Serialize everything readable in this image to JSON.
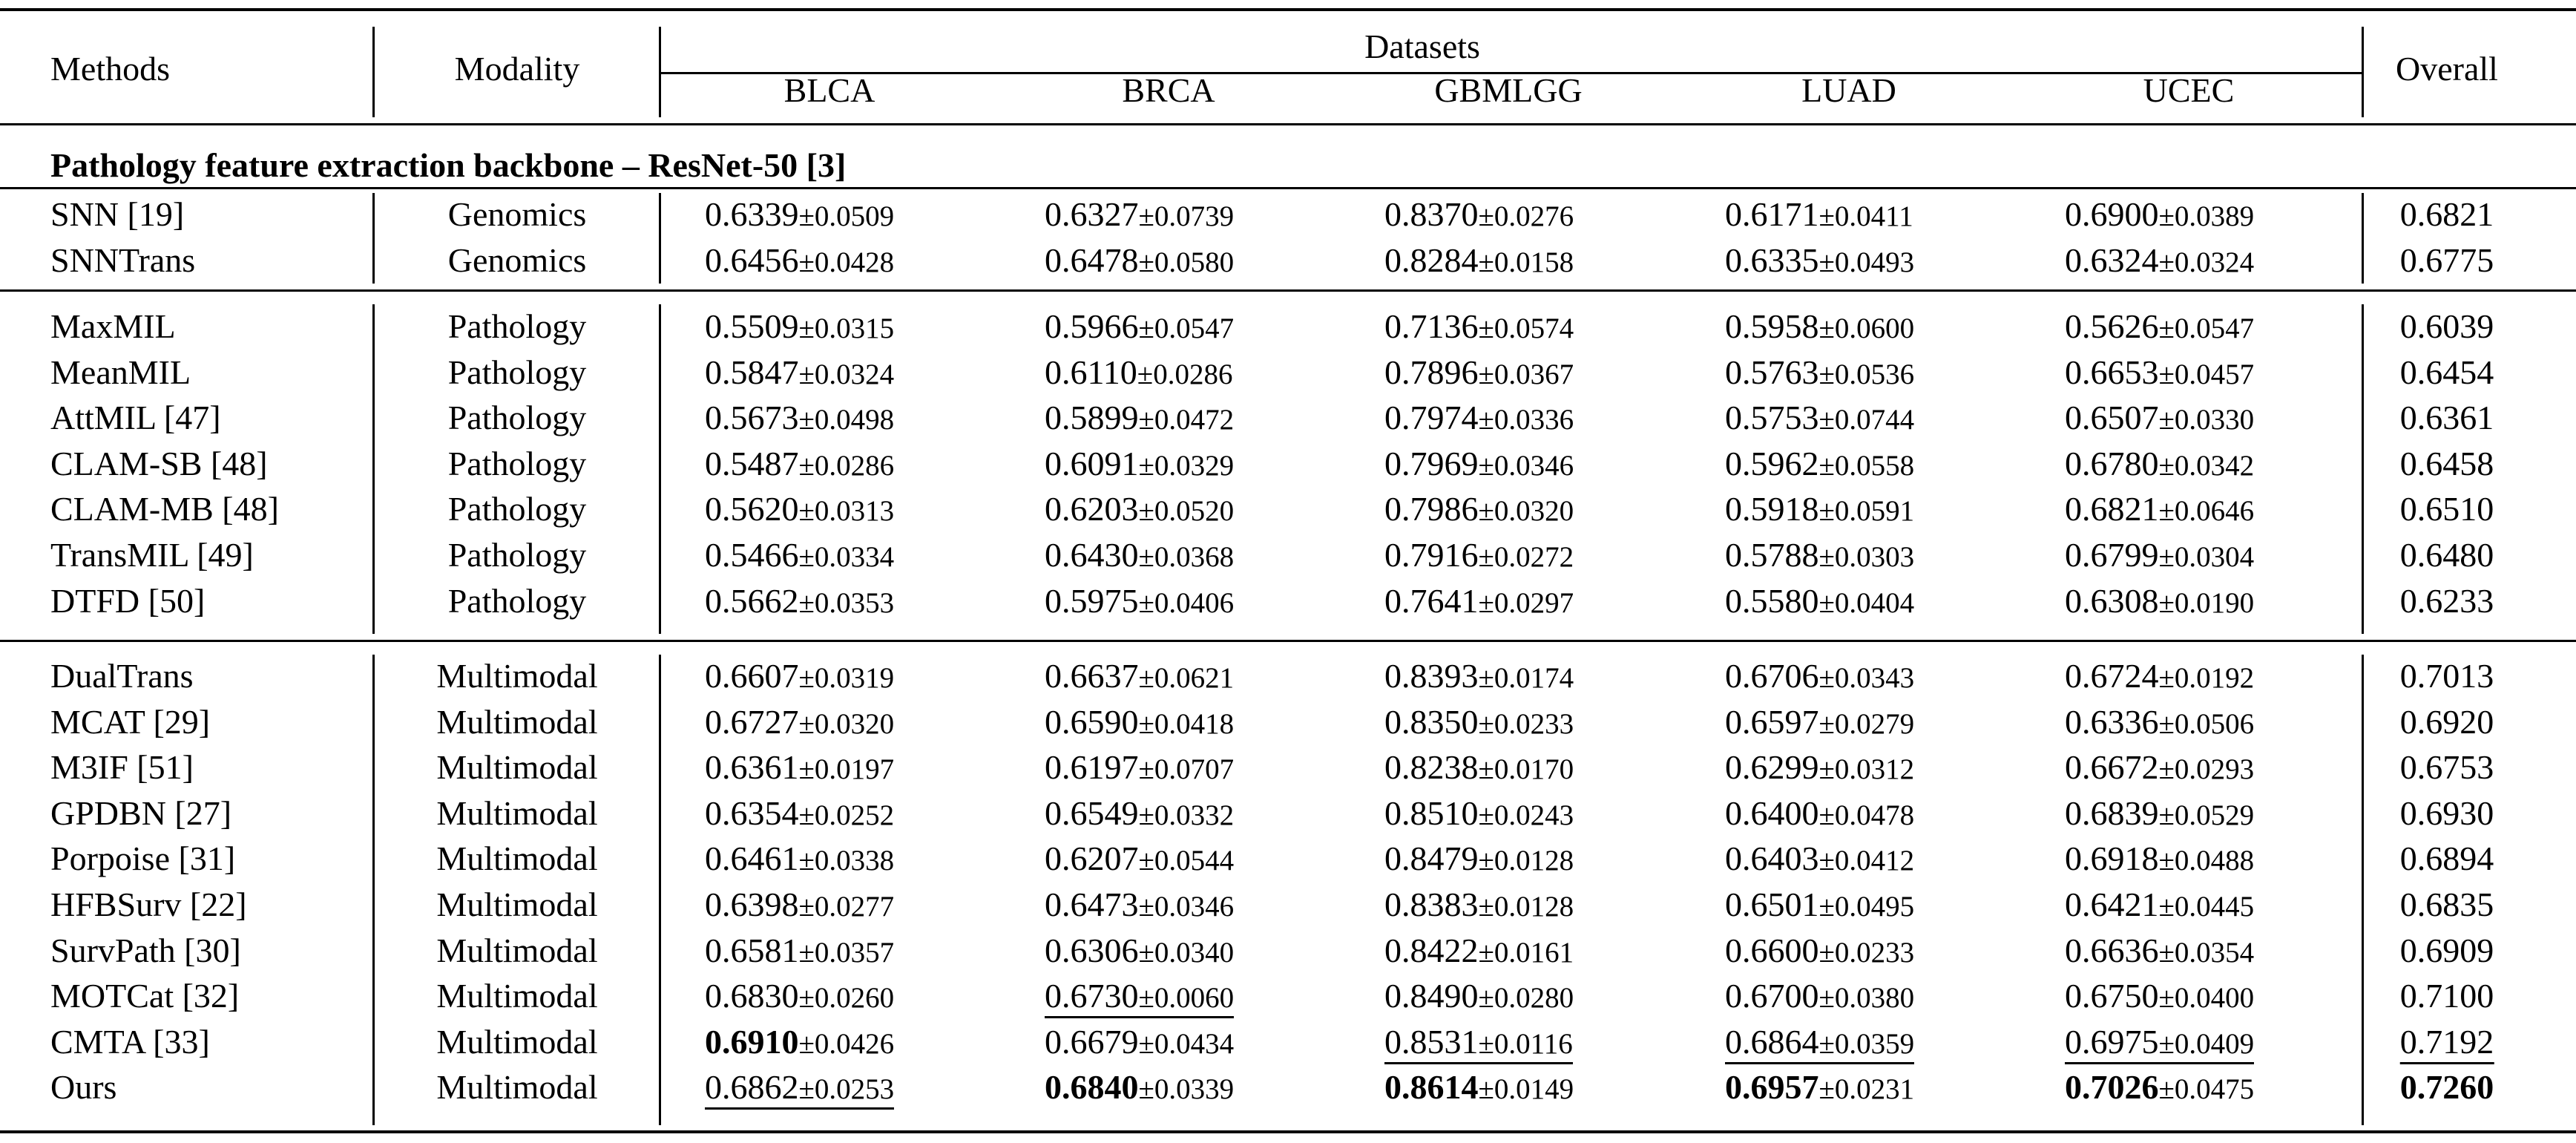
{
  "table": {
    "headers": {
      "methods": "Methods",
      "modality": "Modality",
      "datasets": "Datasets",
      "overall": "Overall",
      "columns": [
        "BLCA",
        "BRCA",
        "GBMLGG",
        "LUAD",
        "UCEC"
      ]
    },
    "section_title": "Pathology feature extraction backbone – ResNet-50 [3]",
    "groups": [
      {
        "name": "genomics",
        "rows": [
          {
            "method": "SNN [19]",
            "modality": "Genomics",
            "cells": [
              [
                "0.6339",
                "±0.0509"
              ],
              [
                "0.6327",
                "±0.0739"
              ],
              [
                "0.8370",
                "±0.0276"
              ],
              [
                "0.6171",
                "±0.0411"
              ],
              [
                "0.6900",
                "±0.0389"
              ]
            ],
            "overall": "0.6821"
          },
          {
            "method": "SNNTrans",
            "modality": "Genomics",
            "cells": [
              [
                "0.6456",
                "±0.0428"
              ],
              [
                "0.6478",
                "±0.0580"
              ],
              [
                "0.8284",
                "±0.0158"
              ],
              [
                "0.6335",
                "±0.0493"
              ],
              [
                "0.6324",
                "±0.0324"
              ]
            ],
            "overall": "0.6775"
          }
        ]
      },
      {
        "name": "pathology",
        "rows": [
          {
            "method": "MaxMIL",
            "modality": "Pathology",
            "cells": [
              [
                "0.5509",
                "±0.0315"
              ],
              [
                "0.5966",
                "±0.0547"
              ],
              [
                "0.7136",
                "±0.0574"
              ],
              [
                "0.5958",
                "±0.0600"
              ],
              [
                "0.5626",
                "±0.0547"
              ]
            ],
            "overall": "0.6039"
          },
          {
            "method": "MeanMIL",
            "modality": "Pathology",
            "cells": [
              [
                "0.5847",
                "±0.0324"
              ],
              [
                "0.6110",
                "±0.0286"
              ],
              [
                "0.7896",
                "±0.0367"
              ],
              [
                "0.5763",
                "±0.0536"
              ],
              [
                "0.6653",
                "±0.0457"
              ]
            ],
            "overall": "0.6454"
          },
          {
            "method": "AttMIL [47]",
            "modality": "Pathology",
            "cells": [
              [
                "0.5673",
                "±0.0498"
              ],
              [
                "0.5899",
                "±0.0472"
              ],
              [
                "0.7974",
                "±0.0336"
              ],
              [
                "0.5753",
                "±0.0744"
              ],
              [
                "0.6507",
                "±0.0330"
              ]
            ],
            "overall": "0.6361"
          },
          {
            "method": "CLAM-SB [48]",
            "modality": "Pathology",
            "cells": [
              [
                "0.5487",
                "±0.0286"
              ],
              [
                "0.6091",
                "±0.0329"
              ],
              [
                "0.7969",
                "±0.0346"
              ],
              [
                "0.5962",
                "±0.0558"
              ],
              [
                "0.6780",
                "±0.0342"
              ]
            ],
            "overall": "0.6458"
          },
          {
            "method": "CLAM-MB [48]",
            "modality": "Pathology",
            "cells": [
              [
                "0.5620",
                "±0.0313"
              ],
              [
                "0.6203",
                "±0.0520"
              ],
              [
                "0.7986",
                "±0.0320"
              ],
              [
                "0.5918",
                "±0.0591"
              ],
              [
                "0.6821",
                "±0.0646"
              ]
            ],
            "overall": "0.6510"
          },
          {
            "method": "TransMIL [49]",
            "modality": "Pathology",
            "cells": [
              [
                "0.5466",
                "±0.0334"
              ],
              [
                "0.6430",
                "±0.0368"
              ],
              [
                "0.7916",
                "±0.0272"
              ],
              [
                "0.5788",
                "±0.0303"
              ],
              [
                "0.6799",
                "±0.0304"
              ]
            ],
            "overall": "0.6480"
          },
          {
            "method": "DTFD [50]",
            "modality": "Pathology",
            "cells": [
              [
                "0.5662",
                "±0.0353"
              ],
              [
                "0.5975",
                "±0.0406"
              ],
              [
                "0.7641",
                "±0.0297"
              ],
              [
                "0.5580",
                "±0.0404"
              ],
              [
                "0.6308",
                "±0.0190"
              ]
            ],
            "overall": "0.6233"
          }
        ]
      },
      {
        "name": "multimodal",
        "rows": [
          {
            "method": "DualTrans",
            "modality": "Multimodal",
            "cells": [
              [
                "0.6607",
                "±0.0319"
              ],
              [
                "0.6637",
                "±0.0621"
              ],
              [
                "0.8393",
                "±0.0174"
              ],
              [
                "0.6706",
                "±0.0343"
              ],
              [
                "0.6724",
                "±0.0192"
              ]
            ],
            "overall": "0.7013"
          },
          {
            "method": "MCAT [29]",
            "modality": "Multimodal",
            "cells": [
              [
                "0.6727",
                "±0.0320"
              ],
              [
                "0.6590",
                "±0.0418"
              ],
              [
                "0.8350",
                "±0.0233"
              ],
              [
                "0.6597",
                "±0.0279"
              ],
              [
                "0.6336",
                "±0.0506"
              ]
            ],
            "overall": "0.6920"
          },
          {
            "method": "M3IF [51]",
            "modality": "Multimodal",
            "cells": [
              [
                "0.6361",
                "±0.0197"
              ],
              [
                "0.6197",
                "±0.0707"
              ],
              [
                "0.8238",
                "±0.0170"
              ],
              [
                "0.6299",
                "±0.0312"
              ],
              [
                "0.6672",
                "±0.0293"
              ]
            ],
            "overall": "0.6753"
          },
          {
            "method": "GPDBN [27]",
            "modality": "Multimodal",
            "cells": [
              [
                "0.6354",
                "±0.0252"
              ],
              [
                "0.6549",
                "±0.0332"
              ],
              [
                "0.8510",
                "±0.0243"
              ],
              [
                "0.6400",
                "±0.0478"
              ],
              [
                "0.6839",
                "±0.0529"
              ]
            ],
            "overall": "0.6930"
          },
          {
            "method": "Porpoise [31]",
            "modality": "Multimodal",
            "cells": [
              [
                "0.6461",
                "±0.0338"
              ],
              [
                "0.6207",
                "±0.0544"
              ],
              [
                "0.8479",
                "±0.0128"
              ],
              [
                "0.6403",
                "±0.0412"
              ],
              [
                "0.6918",
                "±0.0488"
              ]
            ],
            "overall": "0.6894"
          },
          {
            "method": "HFBSurv [22]",
            "modality": "Multimodal",
            "cells": [
              [
                "0.6398",
                "±0.0277"
              ],
              [
                "0.6473",
                "±0.0346"
              ],
              [
                "0.8383",
                "±0.0128"
              ],
              [
                "0.6501",
                "±0.0495"
              ],
              [
                "0.6421",
                "±0.0445"
              ]
            ],
            "overall": "0.6835"
          },
          {
            "method": "SurvPath [30]",
            "modality": "Multimodal",
            "cells": [
              [
                "0.6581",
                "±0.0357"
              ],
              [
                "0.6306",
                "±0.0340"
              ],
              [
                "0.8422",
                "±0.0161"
              ],
              [
                "0.6600",
                "±0.0233"
              ],
              [
                "0.6636",
                "±0.0354"
              ]
            ],
            "overall": "0.6909"
          },
          {
            "method": "MOTCat [32]",
            "modality": "Multimodal",
            "cells": [
              [
                "0.6830",
                "±0.0260"
              ],
              [
                "0.6730",
                "±0.0060",
                "u"
              ],
              [
                "0.8490",
                "±0.0280"
              ],
              [
                "0.6700",
                "±0.0380"
              ],
              [
                "0.6750",
                "±0.0400"
              ]
            ],
            "overall": "0.7100"
          },
          {
            "method": "CMTA [33]",
            "modality": "Multimodal",
            "cells": [
              [
                "0.6910",
                "±0.0426",
                "b"
              ],
              [
                "0.6679",
                "±0.0434"
              ],
              [
                "0.8531",
                "±0.0116",
                "u"
              ],
              [
                "0.6864",
                "±0.0359",
                "u"
              ],
              [
                "0.6975",
                "±0.0409",
                "u"
              ]
            ],
            "overall": "0.7192",
            "overall_style": "u"
          },
          {
            "method": "Ours",
            "modality": "Multimodal",
            "cells": [
              [
                "0.6862",
                "±0.0253",
                "u"
              ],
              [
                "0.6840",
                "±0.0339",
                "b"
              ],
              [
                "0.8614",
                "±0.0149",
                "b"
              ],
              [
                "0.6957",
                "±0.0231",
                "b"
              ],
              [
                "0.7026",
                "±0.0475",
                "b"
              ]
            ],
            "overall": "0.7260",
            "overall_style": "b"
          }
        ]
      }
    ]
  }
}
